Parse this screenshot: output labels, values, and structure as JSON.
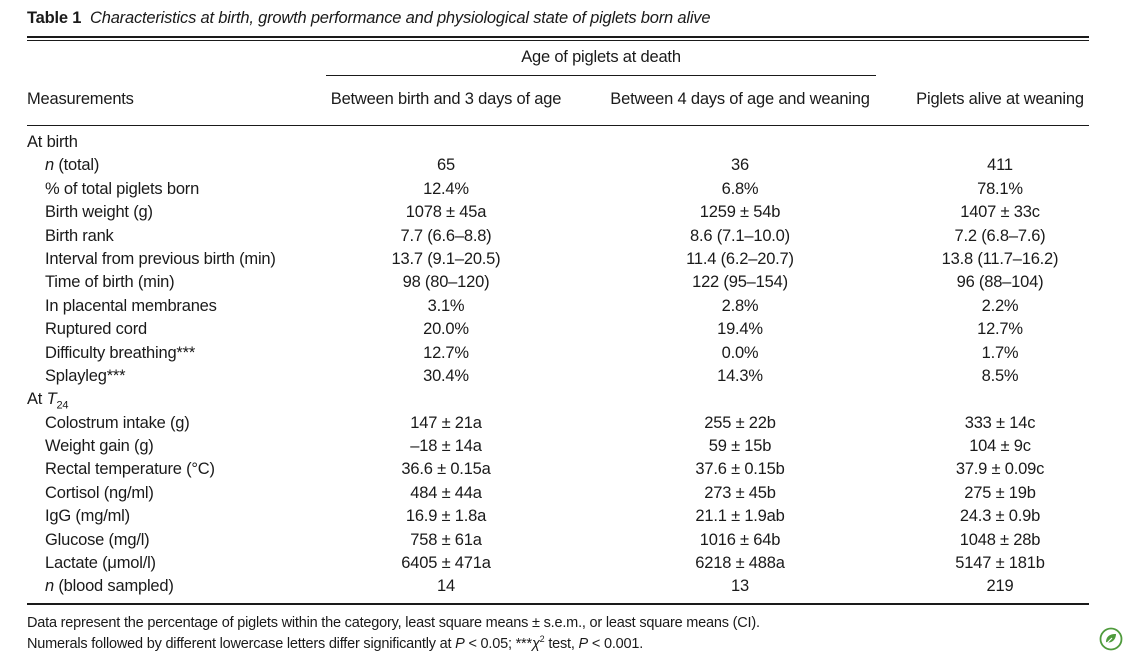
{
  "caption": {
    "label": "Table 1",
    "title": "Characteristics at birth, growth performance and physiological state of piglets born alive"
  },
  "header": {
    "group_label": "Age of piglets at death",
    "measurements": "Measurements",
    "col1": "Between birth and 3 days of age",
    "col2": "Between 4 days of age and weaning",
    "col3": "Piglets alive at weaning"
  },
  "rows": [
    {
      "m": "At birth",
      "v1": "",
      "v2": "",
      "v3": "",
      "section": true
    },
    {
      "m_pre": "",
      "m_it": "n",
      "m_post": " (total)",
      "v1": "65",
      "v2": "36",
      "v3": "411"
    },
    {
      "m": "% of total piglets born",
      "v1": "12.4%",
      "v2": "6.8%",
      "v3": "78.1%"
    },
    {
      "m": "Birth weight (g)",
      "v1": "1078 ± 45a",
      "v2": "1259 ± 54b",
      "v3": "1407 ± 33c"
    },
    {
      "m": "Birth rank",
      "v1": "7.7 (6.6–8.8)",
      "v2": "8.6 (7.1–10.0)",
      "v3": "7.2 (6.8–7.6)"
    },
    {
      "m": "Interval from previous birth (min)",
      "v1": "13.7 (9.1–20.5)",
      "v2": "11.4 (6.2–20.7)",
      "v3": "13.8 (11.7–16.2)"
    },
    {
      "m": "Time of birth (min)",
      "v1": "98 (80–120)",
      "v2": "122 (95–154)",
      "v3": "96 (88–104)"
    },
    {
      "m": "In placental membranes",
      "v1": "3.1%",
      "v2": "2.8%",
      "v3": "2.2%"
    },
    {
      "m": "Ruptured cord",
      "v1": "20.0%",
      "v2": "19.4%",
      "v3": "12.7%"
    },
    {
      "m": "Difficulty breathing***",
      "v1": "12.7%",
      "v2": "0.0%",
      "v3": "1.7%"
    },
    {
      "m": "Splayleg***",
      "v1": "30.4%",
      "v2": "14.3%",
      "v3": "8.5%"
    },
    {
      "m_pre": "At ",
      "m_it": "T",
      "m_sub": "24",
      "m_post": "",
      "v1": "",
      "v2": "",
      "v3": "",
      "section": true
    },
    {
      "m": "Colostrum intake (g)",
      "v1": "147 ± 21a",
      "v2": "255 ± 22b",
      "v3": "333 ± 14c"
    },
    {
      "m": "Weight gain (g)",
      "v1": "–18 ± 14a",
      "v2": "59 ± 15b",
      "v3": "104 ± 9c"
    },
    {
      "m": "Rectal temperature (°C)",
      "v1": "36.6 ± 0.15a",
      "v2": "37.6 ± 0.15b",
      "v3": "37.9 ± 0.09c"
    },
    {
      "m": "Cortisol (ng/ml)",
      "v1": "484 ± 44a",
      "v2": "273 ± 45b",
      "v3": "275 ± 19b"
    },
    {
      "m": "IgG (mg/ml)",
      "v1": "16.9 ± 1.8a",
      "v2": "21.1 ± 1.9ab",
      "v3": "24.3 ± 0.9b"
    },
    {
      "m": "Glucose (mg/l)",
      "v1": "758 ± 61a",
      "v2": "1016 ± 64b",
      "v3": "1048 ± 28b"
    },
    {
      "m": "Lactate (μmol/l)",
      "v1": "6405 ± 471a",
      "v2": "6218 ± 488a",
      "v3": "5147 ± 181b"
    },
    {
      "m_pre": "",
      "m_it": "n",
      "m_post": " (blood sampled)",
      "v1": "14",
      "v2": "13",
      "v3": "219"
    }
  ],
  "footnotes": {
    "line1": "Data represent the percentage of piglets within the category, least square means ± s.e.m., or least square means (CI).",
    "line2_pre": "Numerals followed by different lowercase letters differ significantly at ",
    "line2_p1": "P",
    "line2_mid": " < 0.05; ***",
    "line2_chi": "χ",
    "line2_sup": "2",
    "line2_mid2": " test, ",
    "line2_p2": "P",
    "line2_end": " < 0.001."
  },
  "logo": {
    "icon": "leaf-badge-icon",
    "color": "#4f9b3c"
  }
}
